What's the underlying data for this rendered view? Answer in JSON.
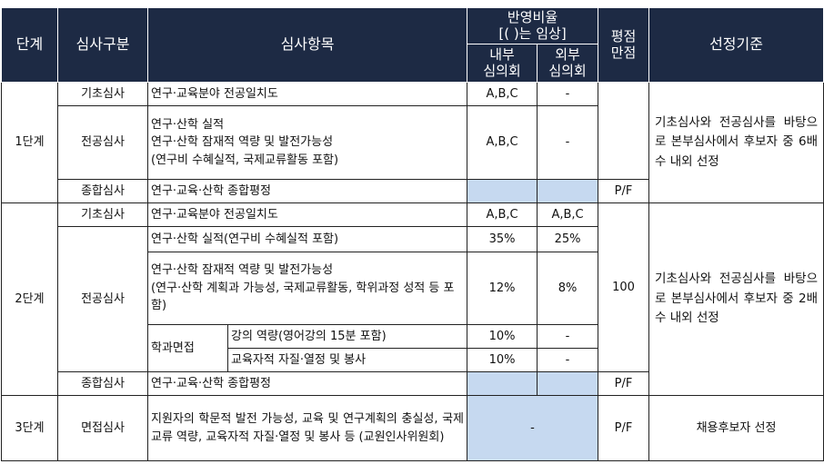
{
  "header": {
    "stage": "단계",
    "category": "심사구분",
    "item": "심사항목",
    "ratio": "반영비율\n[( )는 임상]",
    "internal": "내부\n심의회",
    "external": "외부\n심의회",
    "max_score": "평점\n만점",
    "criteria": "선정기준"
  },
  "stage1": {
    "label": "1단계",
    "basic": {
      "category": "기초심사",
      "item": "연구·교육분야 전공일치도",
      "internal": "A,B,C",
      "external": "-"
    },
    "major": {
      "category": "전공심사",
      "item": "연구·산학 실적\n연구·산학 잠재적 역량 및 발전가능성\n(연구비 수혜실적, 국제교류활동 포함)",
      "internal": "A,B,C",
      "external": "-"
    },
    "overall": {
      "category": "종합심사",
      "item": "연구·교육·산학 종합평정",
      "score": "P/F"
    },
    "criteria": "기초심사와 전공심사를 바탕으로 본부심사에서 후보자 중 6배수 내외 선정"
  },
  "stage2": {
    "label": "2단계",
    "basic": {
      "category": "기초심사",
      "item": "연구·교육분야 전공일치도",
      "internal": "A,B,C",
      "external": "A,B,C"
    },
    "major_category": "전공심사",
    "achievement": {
      "item": "연구·산학 실적(연구비 수혜실적 포함)",
      "internal": "35%",
      "external": "25%"
    },
    "potential": {
      "item": "연구·산학 잠재적 역량 및 발전가능성\n(연구·산학 계획과 가능성, 국제교류활동, 학위과정 성적 등 포함)",
      "internal": "12%",
      "external": "8%"
    },
    "interview_label": "학과면접",
    "lecture": {
      "item": "강의 역량(영어강의 15분 포함)",
      "internal": "10%",
      "external": "-"
    },
    "attitude": {
      "item": "교육자적 자질·열정 및 봉사",
      "internal": "10%",
      "external": "-"
    },
    "score": "100",
    "overall": {
      "category": "종합심사",
      "item": "연구·교육·산학 종합평정",
      "score": "P/F"
    },
    "criteria": "기초심사와 전공심사를 바탕으로 본부심사에서 후보자 중 2배수 내외 선정"
  },
  "stage3": {
    "label": "3단계",
    "category": "면접심사",
    "item": "지원자의 학문적 발전 가능성, 교육 및 연구계획의 충실성, 국제교류 역량, 교육자적 자질·열정 및 봉사 등 (교원인사위원회)",
    "ratio": "-",
    "score": "P/F",
    "criteria": "채용후보자 선정"
  },
  "colors": {
    "header_bg": "#1d2a44",
    "highlight": "#c6d9f0"
  }
}
